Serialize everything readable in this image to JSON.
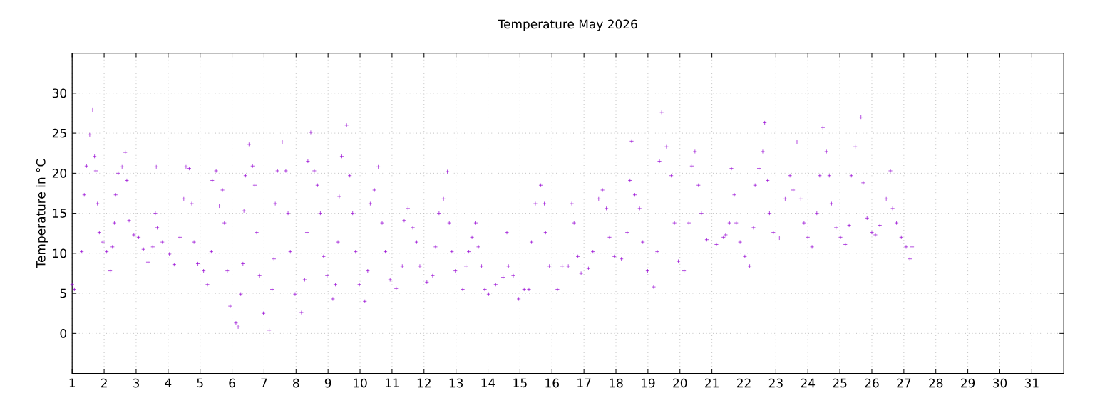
{
  "chart_data": {
    "type": "scatter",
    "title": "Temperature May 2026",
    "ylabel": "Temperature in °C",
    "x": [
      1.0,
      1.07,
      1.3,
      1.38,
      1.45,
      1.55,
      1.64,
      1.7,
      1.74,
      1.79,
      1.85,
      1.96,
      2.08,
      2.19,
      2.26,
      2.32,
      2.36,
      2.44,
      2.56,
      2.66,
      2.71,
      2.78,
      2.93,
      3.08,
      3.23,
      3.37,
      3.52,
      3.6,
      3.63,
      3.66,
      3.82,
      4.04,
      4.19,
      4.37,
      4.49,
      4.56,
      4.66,
      4.74,
      4.81,
      4.93,
      5.11,
      5.23,
      5.35,
      5.38,
      5.5,
      5.6,
      5.7,
      5.76,
      5.85,
      5.94,
      6.12,
      6.19,
      6.27,
      6.34,
      6.37,
      6.42,
      6.53,
      6.64,
      6.71,
      6.77,
      6.86,
      6.98,
      7.16,
      7.25,
      7.31,
      7.35,
      7.42,
      7.57,
      7.68,
      7.75,
      7.82,
      7.97,
      8.17,
      8.27,
      8.34,
      8.37,
      8.46,
      8.57,
      8.67,
      8.76,
      8.86,
      8.97,
      9.15,
      9.23,
      9.31,
      9.35,
      9.43,
      9.58,
      9.68,
      9.77,
      9.86,
      9.98,
      10.15,
      10.24,
      10.32,
      10.45,
      10.57,
      10.69,
      10.79,
      10.94,
      11.13,
      11.32,
      11.38,
      11.5,
      11.65,
      11.77,
      11.87,
      12.09,
      12.27,
      12.36,
      12.47,
      12.61,
      12.73,
      12.79,
      12.87,
      12.98,
      13.21,
      13.31,
      13.4,
      13.5,
      13.62,
      13.7,
      13.8,
      13.9,
      14.02,
      14.24,
      14.47,
      14.59,
      14.64,
      14.79,
      14.96,
      15.13,
      15.28,
      15.36,
      15.48,
      15.65,
      15.76,
      15.8,
      15.92,
      16.17,
      16.32,
      16.51,
      16.62,
      16.69,
      16.81,
      16.91,
      17.14,
      17.28,
      17.46,
      17.58,
      17.7,
      17.8,
      17.95,
      18.17,
      18.35,
      18.44,
      18.49,
      18.59,
      18.74,
      18.84,
      18.99,
      19.18,
      19.29,
      19.36,
      19.43,
      19.58,
      19.73,
      19.83,
      19.95,
      20.13,
      20.28,
      20.37,
      20.47,
      20.58,
      20.67,
      20.84,
      21.14,
      21.36,
      21.43,
      21.55,
      21.61,
      21.7,
      21.76,
      21.88,
      22.03,
      22.18,
      22.3,
      22.35,
      22.47,
      22.59,
      22.65,
      22.74,
      22.8,
      22.92,
      23.11,
      23.29,
      23.44,
      23.54,
      23.66,
      23.78,
      23.88,
      24.0,
      24.13,
      24.28,
      24.37,
      24.47,
      24.58,
      24.67,
      24.74,
      24.88,
      25.02,
      25.17,
      25.29,
      25.36,
      25.48,
      25.66,
      25.73,
      25.85,
      26.0,
      26.11,
      26.25,
      26.45,
      26.58,
      26.65,
      26.77,
      26.92,
      27.07,
      27.19,
      27.26
    ],
    "values": [
      6.1,
      5.5,
      10.2,
      17.3,
      20.9,
      24.8,
      27.9,
      22.1,
      20.3,
      16.2,
      12.6,
      11.4,
      10.2,
      7.8,
      10.8,
      13.8,
      17.3,
      20.0,
      20.8,
      22.6,
      19.1,
      14.1,
      12.3,
      12.0,
      10.5,
      8.9,
      10.8,
      15.0,
      20.8,
      13.2,
      11.4,
      9.9,
      8.6,
      12.0,
      16.8,
      20.8,
      20.6,
      16.2,
      11.4,
      8.7,
      7.8,
      6.1,
      10.2,
      19.1,
      20.3,
      15.9,
      17.9,
      13.8,
      7.8,
      3.4,
      1.3,
      0.8,
      4.9,
      8.7,
      15.3,
      19.7,
      23.6,
      20.9,
      18.5,
      12.6,
      7.2,
      2.5,
      0.4,
      5.5,
      9.3,
      16.2,
      20.3,
      23.9,
      20.3,
      15.0,
      10.2,
      4.9,
      2.6,
      6.7,
      12.6,
      21.5,
      25.1,
      20.3,
      18.5,
      15.0,
      9.6,
      7.2,
      4.3,
      6.1,
      11.4,
      17.1,
      22.1,
      26.0,
      19.7,
      15.0,
      10.2,
      6.1,
      4.0,
      7.8,
      16.2,
      17.9,
      20.8,
      13.8,
      10.2,
      6.7,
      5.6,
      8.4,
      14.1,
      15.6,
      13.2,
      11.4,
      8.4,
      6.4,
      7.2,
      10.8,
      15.0,
      16.8,
      20.2,
      13.8,
      10.2,
      7.8,
      5.5,
      8.4,
      10.2,
      12.0,
      13.8,
      10.8,
      8.4,
      5.5,
      4.9,
      6.1,
      7.0,
      12.6,
      8.4,
      7.2,
      4.3,
      5.5,
      5.5,
      11.4,
      16.2,
      18.5,
      16.2,
      12.6,
      8.4,
      5.5,
      8.4,
      8.4,
      16.2,
      13.8,
      9.6,
      7.5,
      8.1,
      10.2,
      16.8,
      17.9,
      15.6,
      12.0,
      9.6,
      9.3,
      12.6,
      19.1,
      24.0,
      17.3,
      15.6,
      11.4,
      7.8,
      5.8,
      10.2,
      21.5,
      27.6,
      23.3,
      19.7,
      13.8,
      9.0,
      7.8,
      13.8,
      20.9,
      22.7,
      18.5,
      15.0,
      11.7,
      11.1,
      12.0,
      12.3,
      13.8,
      20.6,
      17.3,
      13.8,
      11.4,
      9.6,
      8.4,
      13.2,
      18.5,
      20.6,
      22.7,
      26.3,
      19.1,
      15.0,
      12.6,
      11.9,
      16.8,
      19.7,
      17.9,
      23.9,
      16.8,
      13.8,
      12.0,
      10.8,
      15.0,
      19.7,
      25.7,
      22.7,
      19.7,
      16.2,
      13.2,
      12.0,
      11.1,
      13.5,
      19.7,
      23.3,
      27.0,
      18.8,
      14.4,
      12.6,
      12.3,
      13.5,
      16.8,
      20.3,
      15.6,
      13.8,
      12.0,
      10.8,
      9.3,
      10.8
    ],
    "color": "#9400d3",
    "marker": "cross",
    "grid": true,
    "xlim": [
      1,
      32
    ],
    "ylim": [
      -5,
      35
    ],
    "xticks": [
      1,
      2,
      3,
      4,
      5,
      6,
      7,
      8,
      9,
      10,
      11,
      12,
      13,
      14,
      15,
      16,
      17,
      18,
      19,
      20,
      21,
      22,
      23,
      24,
      25,
      26,
      27,
      28,
      29,
      30,
      31
    ],
    "yticks": [
      0,
      5,
      10,
      15,
      20,
      25,
      30
    ]
  }
}
